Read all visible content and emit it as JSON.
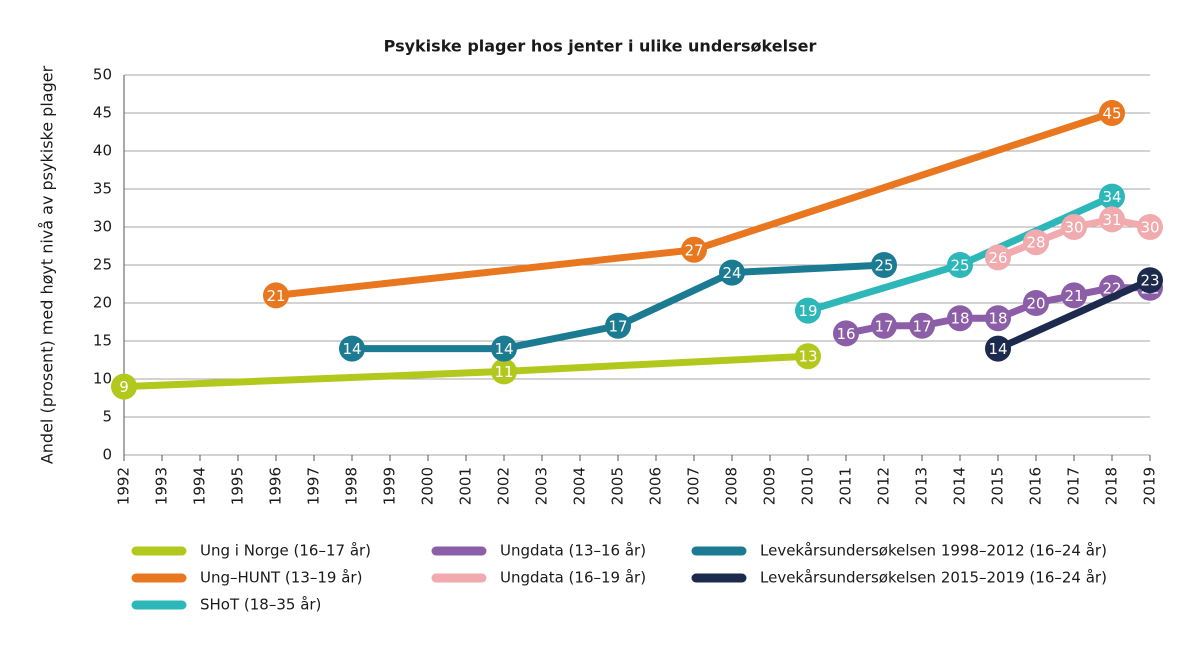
{
  "chart_data": {
    "type": "line",
    "title": "Psykiske plager hos jenter i ulike undersøkelser",
    "y_label": "Andel (prosent) med høyt nivå av psykiske plager",
    "xlim": [
      1992,
      2019
    ],
    "xticks": [
      1992,
      1993,
      1994,
      1995,
      1996,
      1997,
      1998,
      1999,
      2000,
      2001,
      2002,
      2003,
      2004,
      2005,
      2006,
      2007,
      2008,
      2009,
      2010,
      2011,
      2012,
      2013,
      2014,
      2015,
      2016,
      2017,
      2018,
      2019
    ],
    "ylim": [
      0,
      50
    ],
    "yticks": [
      0,
      5,
      10,
      15,
      20,
      25,
      30,
      35,
      40,
      45,
      50
    ],
    "grid": true,
    "series": [
      {
        "name": "Ung i Norge (16–17 år)",
        "color": "#b3c81c",
        "x": [
          1992,
          2002,
          2010
        ],
        "values": [
          9,
          11,
          13
        ]
      },
      {
        "name": "Ung–HUNT (13–19 år)",
        "color": "#e9771f",
        "x": [
          1996,
          2007,
          2018
        ],
        "values": [
          21,
          27,
          45
        ]
      },
      {
        "name": "SHoT (18–35 år)",
        "color": "#2db7b9",
        "x": [
          2010,
          2014,
          2018
        ],
        "values": [
          19,
          25,
          34
        ]
      },
      {
        "name": "Ungdata (13–16 år)",
        "color": "#8c5ea8",
        "x": [
          2011,
          2012,
          2013,
          2014,
          2015,
          2016,
          2017,
          2018,
          2019
        ],
        "values": [
          16,
          17,
          17,
          18,
          18,
          20,
          21,
          22,
          22
        ]
      },
      {
        "name": "Ungdata (16–19 år)",
        "color": "#f1aaae",
        "x": [
          2015,
          2016,
          2017,
          2018,
          2019
        ],
        "values": [
          26,
          28,
          30,
          31,
          30
        ]
      },
      {
        "name": "Levekårsundersøkelsen 1998–2012 (16–24 år)",
        "color": "#1b7b93",
        "x": [
          1998,
          2002,
          2005,
          2008,
          2012
        ],
        "values": [
          14,
          14,
          17,
          24,
          25
        ]
      },
      {
        "name": "Levekårsundersøkelsen 2015–2019 (16–24 år)",
        "color": "#1c2a4e",
        "x": [
          2015,
          2019
        ],
        "values": [
          14,
          23
        ]
      }
    ]
  }
}
